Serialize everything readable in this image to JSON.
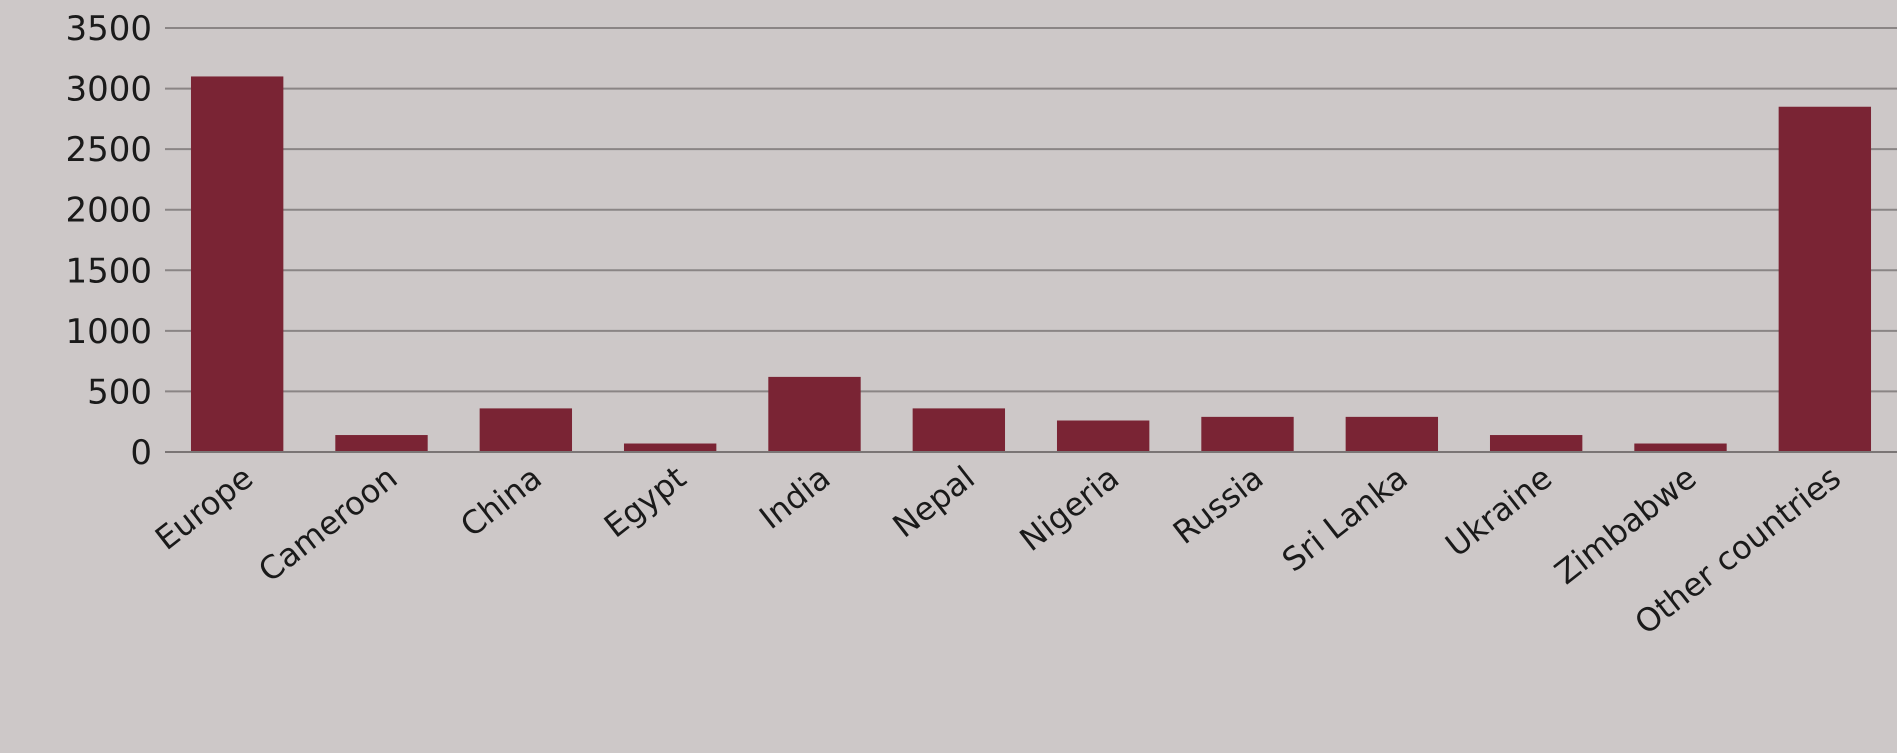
{
  "chart_data": {
    "type": "bar",
    "title": "",
    "xlabel": "",
    "ylabel": "",
    "categories": [
      "Europe",
      "Cameroon",
      "China",
      "Egypt",
      "India",
      "Nepal",
      "Nigeria",
      "Russia",
      "Sri Lanka",
      "Ukraine",
      "Zimbabwe",
      "Other countries"
    ],
    "values": [
      3100,
      140,
      360,
      70,
      620,
      360,
      260,
      290,
      290,
      140,
      70,
      2850
    ],
    "ylim": [
      0,
      3500
    ],
    "yticks": [
      "0",
      "500",
      "1000",
      "1500",
      "2000",
      "2500",
      "3000",
      "3500"
    ],
    "grid": true,
    "legend": "none",
    "bar_color": "#7a2434",
    "background_color": "#cdc8c8"
  }
}
